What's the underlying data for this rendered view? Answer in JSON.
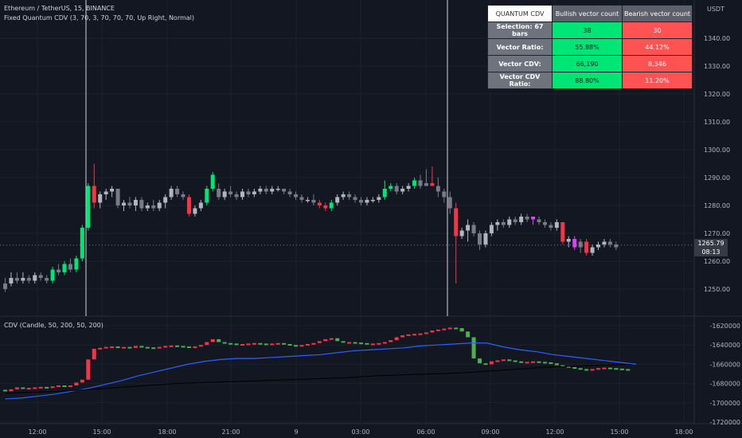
{
  "header": {
    "symbol_line": "Ethereum / TetherUS, 15, BINANCE",
    "indicator_line": "Fixed Quantum CDV (3, 70, 3, 70, 70, 70, Up Right, Normal)",
    "cdv_line": "CDV (Candle, 50, 200, 50, 200)"
  },
  "axis": {
    "currency": "USDT",
    "price_ticks": [
      "1340.00",
      "1330.00",
      "1320.00",
      "1310.00",
      "1300.00",
      "1290.00",
      "1280.00",
      "1270.00",
      "1260.00",
      "1250.00"
    ],
    "cdv_ticks": [
      "-1620000",
      "-1640000",
      "-1660000",
      "-1680000",
      "-1700000",
      "-1720000"
    ],
    "time_ticks": [
      "12:00",
      "15:00",
      "18:00",
      "21:00",
      "9",
      "03:00",
      "06:00",
      "09:00",
      "12:00",
      "15:00",
      "18:00"
    ]
  },
  "last_price": {
    "price": "1265.79",
    "countdown": "08:13"
  },
  "stats_table": {
    "header": [
      "QUANTUM CDV",
      "Bullish vector count",
      "Bearish vector count"
    ],
    "rows": [
      {
        "label": "Selection: 67 bars",
        "bull": "38",
        "bear": "30"
      },
      {
        "label": "Vector Ratio:",
        "bull": "55.88%",
        "bear": "44.12%"
      },
      {
        "label": "Vector CDV:",
        "bull": "66,190",
        "bear": "8,346"
      },
      {
        "label": "Vector CDV Ratio:",
        "bull": "88.80%",
        "bear": "11.20%"
      }
    ]
  },
  "colors": {
    "background": "#131722",
    "bull_vector": "#00e676",
    "bear_vector": "#f23645",
    "bull_normal": "#b2b5be",
    "bear_normal": "#787b86",
    "magenta_vector": "#e040fb",
    "cdv_bull": "#4caf50",
    "cdv_bear": "#f23645",
    "ma_fast": "#2962ff",
    "ma_slow": "#000000"
  },
  "chart_data": [
    {
      "type": "candlestick",
      "title": "Ethereum / TetherUS, 15, BINANCE",
      "ylabel": "USDT",
      "ylim": [
        1243,
        1351
      ],
      "selection_markers": [
        "13:45",
        "07:45"
      ],
      "candles_ohlc_with_vector_class": [
        [
          1250,
          1254,
          1249,
          1252,
          "b"
        ],
        [
          1252,
          1256,
          1251,
          1254,
          "bu"
        ],
        [
          1254,
          1256,
          1252,
          1253,
          "b"
        ],
        [
          1253,
          1256,
          1252,
          1254,
          "bu"
        ],
        [
          1254,
          1255,
          1252,
          1253,
          "b"
        ],
        [
          1253,
          1256,
          1252,
          1255,
          "bu"
        ],
        [
          1255,
          1256,
          1253,
          1254,
          "b"
        ],
        [
          1254,
          1255,
          1252,
          1253,
          "b"
        ],
        [
          1253,
          1258,
          1252,
          1257,
          "gv"
        ],
        [
          1257,
          1259,
          1255,
          1256,
          "b"
        ],
        [
          1256,
          1260,
          1255,
          1259,
          "gv"
        ],
        [
          1259,
          1261,
          1256,
          1257,
          "b"
        ],
        [
          1257,
          1262,
          1256,
          1261,
          "gv"
        ],
        [
          1261,
          1273,
          1260,
          1272,
          "gv"
        ],
        [
          1272,
          1288,
          1271,
          1287,
          "gv"
        ],
        [
          1287,
          1295,
          1279,
          1281,
          "rv"
        ],
        [
          1281,
          1285,
          1279,
          1284,
          "bu"
        ],
        [
          1284,
          1286,
          1282,
          1285,
          "bu"
        ],
        [
          1285,
          1287,
          1283,
          1286,
          "bu"
        ],
        [
          1286,
          1286,
          1279,
          1280,
          "b"
        ],
        [
          1280,
          1282,
          1278,
          1281,
          "bu"
        ],
        [
          1281,
          1283,
          1279,
          1280,
          "b"
        ],
        [
          1280,
          1283,
          1278,
          1282,
          "bu"
        ],
        [
          1282,
          1283,
          1278,
          1279,
          "b"
        ],
        [
          1279,
          1281,
          1278,
          1280,
          "bu"
        ],
        [
          1280,
          1282,
          1278,
          1279,
          "b"
        ],
        [
          1279,
          1282,
          1278,
          1281,
          "bu"
        ],
        [
          1281,
          1284,
          1279,
          1283,
          "bu"
        ],
        [
          1283,
          1287,
          1282,
          1286,
          "bu"
        ],
        [
          1286,
          1287,
          1283,
          1284,
          "b"
        ],
        [
          1284,
          1285,
          1282,
          1283,
          "b"
        ],
        [
          1283,
          1284,
          1276,
          1277,
          "rv"
        ],
        [
          1277,
          1280,
          1276,
          1279,
          "bu"
        ],
        [
          1279,
          1282,
          1278,
          1281,
          "bu"
        ],
        [
          1281,
          1287,
          1280,
          1286,
          "gv"
        ],
        [
          1286,
          1292,
          1285,
          1291,
          "gv"
        ],
        [
          1286,
          1288,
          1282,
          1283,
          "b"
        ],
        [
          1283,
          1286,
          1282,
          1285,
          "bu"
        ],
        [
          1285,
          1287,
          1283,
          1284,
          "b"
        ],
        [
          1284,
          1285,
          1282,
          1283,
          "b"
        ],
        [
          1283,
          1286,
          1282,
          1285,
          "bu"
        ],
        [
          1285,
          1286,
          1283,
          1284,
          "b"
        ],
        [
          1284,
          1286,
          1283,
          1285,
          "bu"
        ],
        [
          1285,
          1287,
          1284,
          1286,
          "bu"
        ],
        [
          1286,
          1287,
          1284,
          1285,
          "b"
        ],
        [
          1285,
          1287,
          1284,
          1286,
          "bu"
        ],
        [
          1286,
          1287,
          1285,
          1286,
          "bu"
        ],
        [
          1286,
          1286,
          1284,
          1285,
          "b"
        ],
        [
          1285,
          1286,
          1283,
          1284,
          "b"
        ],
        [
          1284,
          1285,
          1282,
          1283,
          "b"
        ],
        [
          1283,
          1284,
          1281,
          1282,
          "b"
        ],
        [
          1282,
          1283,
          1281,
          1282,
          "bu"
        ],
        [
          1282,
          1284,
          1280,
          1281,
          "b"
        ],
        [
          1281,
          1282,
          1279,
          1280,
          "rv"
        ],
        [
          1280,
          1281,
          1278,
          1279,
          "rv"
        ],
        [
          1279,
          1282,
          1278,
          1281,
          "gv"
        ],
        [
          1281,
          1284,
          1280,
          1283,
          "bu"
        ],
        [
          1283,
          1285,
          1282,
          1284,
          "bu"
        ],
        [
          1284,
          1285,
          1282,
          1283,
          "b"
        ],
        [
          1283,
          1284,
          1281,
          1282,
          "b"
        ],
        [
          1282,
          1283,
          1280,
          1281,
          "b"
        ],
        [
          1281,
          1283,
          1280,
          1282,
          "bu"
        ],
        [
          1282,
          1283,
          1281,
          1282,
          "bu"
        ],
        [
          1282,
          1284,
          1281,
          1283,
          "bu"
        ],
        [
          1283,
          1289,
          1282,
          1286,
          "gv"
        ],
        [
          1286,
          1288,
          1285,
          1287,
          "gv"
        ],
        [
          1287,
          1288,
          1284,
          1285,
          "b"
        ],
        [
          1285,
          1287,
          1284,
          1286,
          "bu"
        ],
        [
          1286,
          1288,
          1285,
          1287,
          "bu"
        ],
        [
          1287,
          1290,
          1286,
          1289,
          "gv"
        ],
        [
          1289,
          1291,
          1286,
          1287,
          "b"
        ],
        [
          1287,
          1293,
          1287,
          1288,
          "b"
        ],
        [
          1288,
          1294,
          1287,
          1287,
          "rv"
        ],
        [
          1287,
          1290,
          1283,
          1285,
          "b"
        ],
        [
          1285,
          1286,
          1281,
          1283,
          "b"
        ],
        [
          1283,
          1285,
          1277,
          1279,
          "b"
        ],
        [
          1279,
          1281,
          1252,
          1269,
          "rv"
        ],
        [
          1269,
          1272,
          1268,
          1271,
          "bu"
        ],
        [
          1271,
          1275,
          1267,
          1273,
          "bu"
        ],
        [
          1273,
          1274,
          1269,
          1270,
          "b"
        ],
        [
          1270,
          1271,
          1264,
          1266,
          "b"
        ],
        [
          1266,
          1271,
          1265,
          1270,
          "bu"
        ],
        [
          1270,
          1274,
          1269,
          1273,
          "bu"
        ],
        [
          1273,
          1275,
          1271,
          1274,
          "bu"
        ],
        [
          1274,
          1275,
          1272,
          1273,
          "b"
        ],
        [
          1273,
          1276,
          1272,
          1275,
          "bu"
        ],
        [
          1275,
          1276,
          1273,
          1274,
          "b"
        ],
        [
          1274,
          1277,
          1273,
          1276,
          "bu"
        ],
        [
          1276,
          1277,
          1274,
          1275,
          "b"
        ],
        [
          1275,
          1276,
          1273,
          1276,
          "pv"
        ],
        [
          1275,
          1276,
          1273,
          1274,
          "b"
        ],
        [
          1274,
          1275,
          1272,
          1273,
          "b"
        ],
        [
          1273,
          1274,
          1271,
          1272,
          "b"
        ],
        [
          1272,
          1275,
          1271,
          1274,
          "bu"
        ],
        [
          1274,
          1274,
          1266,
          1267,
          "rv"
        ],
        [
          1267,
          1269,
          1265,
          1268,
          "bu"
        ],
        [
          1268,
          1269,
          1264,
          1265,
          "pv"
        ],
        [
          1265,
          1268,
          1263,
          1267,
          "b"
        ],
        [
          1267,
          1268,
          1262,
          1263,
          "rv"
        ],
        [
          1263,
          1266,
          1262,
          1265,
          "bu"
        ],
        [
          1265,
          1267,
          1264,
          1266,
          "bu"
        ],
        [
          1266,
          1268,
          1265,
          1267,
          "bu"
        ],
        [
          1267,
          1268,
          1265,
          1266,
          "b"
        ],
        [
          1266,
          1267,
          1264,
          1265,
          "b"
        ]
      ]
    },
    {
      "type": "line",
      "title": "CDV (Candle, 50, 200, 50, 200)",
      "ylim": [
        -1720000,
        -1615000
      ],
      "series": [
        {
          "values": [
            -1688000,
            -1686000,
            -1684000,
            -1685000,
            -1684500,
            -1684000,
            -1683500,
            -1684000,
            -1683000,
            -1682000,
            -1683000,
            -1682000,
            -1679000,
            -1676000,
            -1655000,
            -1644000,
            -1643000,
            -1642000,
            -1641500,
            -1643000,
            -1642000,
            -1643000,
            -1641000,
            -1642000,
            -1642500,
            -1643000,
            -1642000,
            -1641000,
            -1640500,
            -1641000,
            -1641500,
            -1642000,
            -1641500,
            -1640000,
            -1637000,
            -1634000,
            -1637000,
            -1638000,
            -1638500,
            -1639000,
            -1639000,
            -1638500,
            -1638000,
            -1638500,
            -1639000,
            -1638500,
            -1638000,
            -1639000,
            -1640000,
            -1641000,
            -1640000,
            -1639000,
            -1638000,
            -1636000,
            -1634000,
            -1633000,
            -1636000,
            -1637000,
            -1637000,
            -1637500,
            -1638000,
            -1638500,
            -1638500,
            -1638000,
            -1637000,
            -1635000,
            -1632000,
            -1630000,
            -1629000,
            -1628500,
            -1628000,
            -1627000,
            -1625000,
            -1624000,
            -1623000,
            -1622000,
            -1622500,
            -1626000,
            -1632000,
            -1654000,
            -1659000,
            -1660000,
            -1657000,
            -1656000,
            -1655000,
            -1656000,
            -1657000,
            -1658000,
            -1657500,
            -1657000,
            -1657500,
            -1658000,
            -1659000,
            -1661000,
            -1662000,
            -1663000,
            -1664000,
            -1665000,
            -1665500,
            -1665000,
            -1664000,
            -1663500,
            -1664000,
            -1664500,
            -1665000,
            -1665500
          ]
        },
        {
          "values": [
            -1696000,
            -1695000,
            -1693000,
            -1691000,
            -1688000,
            -1685000,
            -1681000,
            -1677000,
            -1672000,
            -1668000,
            -1664000,
            -1660000,
            -1657000,
            -1655000,
            -1654000,
            -1654000,
            -1653000,
            -1652000,
            -1651000,
            -1650000,
            -1648000,
            -1646000,
            -1645000,
            -1644000,
            -1643000,
            -1641000,
            -1640000,
            -1639000,
            -1638000,
            -1638000,
            -1642000,
            -1645000,
            -1647000,
            -1650000,
            -1652000,
            -1654000,
            -1656000,
            -1658000,
            -1660000
          ]
        },
        {
          "values": [
            -1690000,
            -1689000,
            -1688000,
            -1686000,
            -1684000,
            -1682000,
            -1680000,
            -1679000,
            -1678000,
            -1677000,
            -1676000,
            -1675000,
            -1674000,
            -1672000,
            -1671000,
            -1670000,
            -1669000,
            -1667000,
            -1665000,
            -1663000,
            -1662000,
            -1661000,
            -1660000
          ]
        }
      ]
    }
  ]
}
